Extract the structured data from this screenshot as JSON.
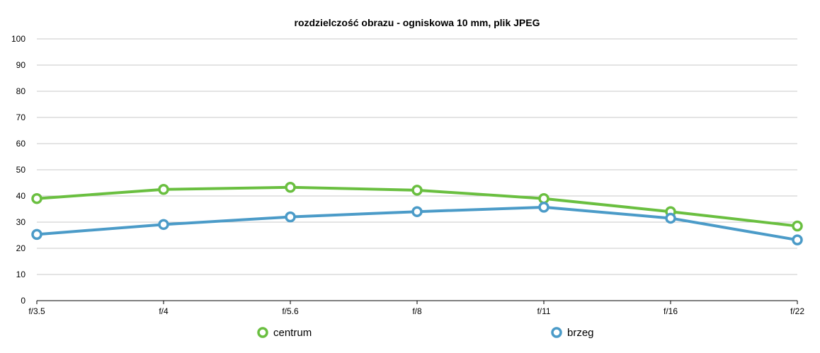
{
  "chart_data": {
    "type": "line",
    "title": "rozdzielczość obrazu - ogniskowa 10 mm, plik JPEG",
    "xlabel": "",
    "ylabel": "",
    "categories": [
      "f/3.5",
      "f/4",
      "f/5.6",
      "f/8",
      "f/11",
      "f/16",
      "f/22"
    ],
    "ylim": [
      0,
      100
    ],
    "yticks": [
      0,
      10,
      20,
      30,
      40,
      50,
      60,
      70,
      80,
      90,
      100
    ],
    "grid": true,
    "legend_position": "bottom",
    "series": [
      {
        "name": "centrum",
        "color": "#6abf40",
        "values": [
          39,
          42.5,
          43.3,
          42.2,
          39,
          34,
          28.5
        ]
      },
      {
        "name": "brzeg",
        "color": "#4b9bc8",
        "values": [
          25.3,
          29.1,
          32,
          34,
          35.7,
          31.5,
          23.2
        ]
      }
    ]
  }
}
